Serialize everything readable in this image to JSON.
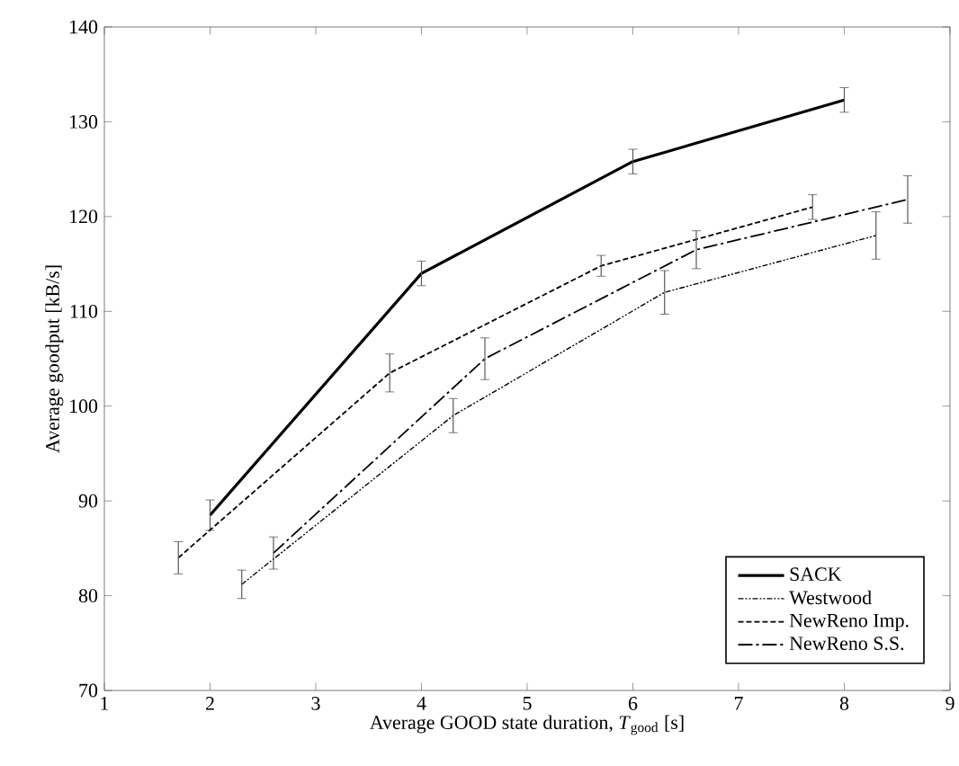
{
  "chart_data": {
    "type": "line",
    "xlabel": "Average GOOD state duration, *T*$_{good}$ [s]",
    "ylabel": "Average goodput [kB/s]",
    "xlim": [
      1,
      9
    ],
    "ylim": [
      70,
      140
    ],
    "xticks": [
      1,
      2,
      3,
      4,
      5,
      6,
      7,
      8,
      9
    ],
    "yticks": [
      70,
      80,
      90,
      100,
      110,
      120,
      130,
      140
    ],
    "grid": false,
    "legend": "bottom right",
    "marker": "none",
    "series": [
      {
        "name": "SACK",
        "color": "#000000",
        "line_style": "solid",
        "x": [
          2,
          4,
          6,
          8
        ],
        "values": [
          88.5,
          114,
          125.8,
          132.3
        ],
        "errors": [
          1.6,
          1.3,
          1.3,
          1.3
        ]
      },
      {
        "name": "Westwood",
        "color": "#000000",
        "line_style": "dashdotdotted",
        "x": [
          2.3,
          4.3,
          6.3,
          8.3
        ],
        "values": [
          81.2,
          99,
          112,
          118
        ],
        "errors": [
          1.5,
          1.8,
          2.3,
          2.5
        ]
      },
      {
        "name": "NewReno Imp.",
        "color": "#000000",
        "line_style": "dashed",
        "x": [
          1.7,
          3.7,
          5.7,
          7.7
        ],
        "values": [
          84,
          103.5,
          114.8,
          121
        ],
        "errors": [
          1.7,
          2,
          1.1,
          1.3
        ]
      },
      {
        "name": "NewReno S.S.",
        "color": "#000000",
        "line_style": "dashdotted",
        "x": [
          2.6,
          4.6,
          6.6,
          8.6
        ],
        "values": [
          84.5,
          105,
          116.5,
          121.8
        ],
        "errors": [
          1.7,
          2.2,
          2,
          2.5
        ]
      }
    ]
  }
}
